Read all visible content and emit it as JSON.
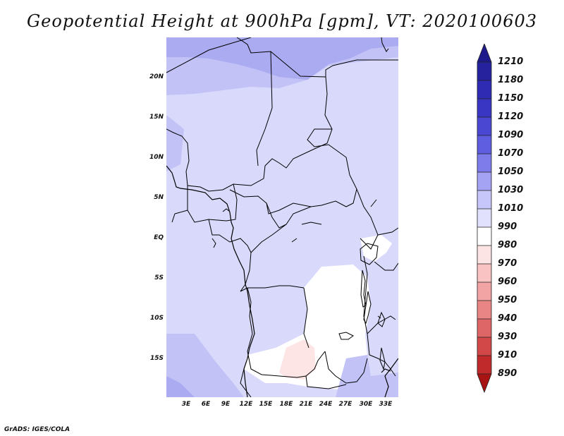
{
  "title": "Geopotential Height at 900hPa [gpm], VT: 2020100603",
  "credit": "GrADS: IGES/COLA",
  "lat_labels": [
    "20N",
    "15N",
    "10N",
    "5N",
    "EQ",
    "5S",
    "10S",
    "15S"
  ],
  "lon_labels": [
    "3E",
    "6E",
    "9E",
    "12E",
    "15E",
    "18E",
    "21E",
    "24E",
    "27E",
    "30E",
    "33E"
  ],
  "colorbar": {
    "levels": [
      "1210",
      "1180",
      "1150",
      "1120",
      "1090",
      "1070",
      "1050",
      "1030",
      "1010",
      "990",
      "980",
      "970",
      "960",
      "950",
      "940",
      "930",
      "910",
      "890"
    ],
    "colors": [
      "#1e1a8c",
      "#26229e",
      "#2f2bb2",
      "#3a36c4",
      "#4a47d2",
      "#5f5de0",
      "#7e7ceb",
      "#a3a2f3",
      "#c6c6fa",
      "#e1e1fd",
      "#ffffff",
      "#fde4e4",
      "#f9c3c3",
      "#f2a3a3",
      "#e98585",
      "#df6666",
      "#d24848",
      "#c02a2a",
      "#a81414"
    ]
  },
  "field_colors": {
    "base": "#d9d9fc",
    "high": "#c2c2f7",
    "higher": "#ababf1",
    "low": "#ffffff",
    "lower": "#fde5e5",
    "border": "#000000"
  }
}
